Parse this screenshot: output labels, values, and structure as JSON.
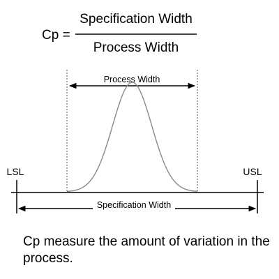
{
  "formula": {
    "lhs": "Cp =",
    "numerator": "Specification Width",
    "denominator": "Process Width"
  },
  "diagram": {
    "process_width_label": "Process Width",
    "spec_width_label": "Specification Width",
    "lsl_label": "LSL",
    "usl_label": "USL"
  },
  "caption": "Cp measure the amount of variation in the process."
}
